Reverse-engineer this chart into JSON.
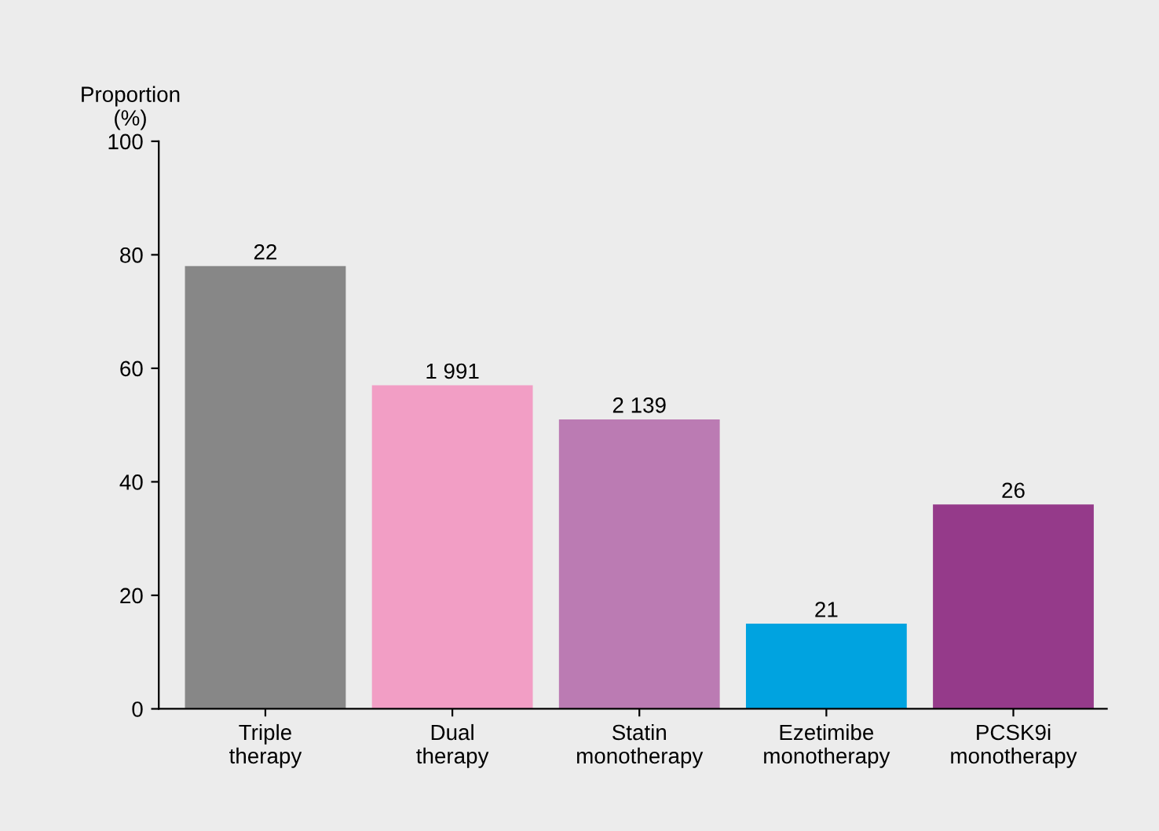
{
  "chart_data": {
    "type": "bar",
    "ylabel": "Proportion\n(%)",
    "categories": [
      "Triple\ntherapy",
      "Dual\ntherapy",
      "Statin\nmonotherapy",
      "Ezetimibe\nmonotherapy",
      "PCSK9i\nmonotherapy"
    ],
    "values": [
      78,
      57,
      51,
      15,
      36
    ],
    "colors": [
      "#878787",
      "#f29ec5",
      "#bb7bb3",
      "#00a3e0",
      "#953a8a"
    ],
    "annotations": [
      {
        "text": "22",
        "x": "Triple\ntherapy",
        "y": 78
      },
      {
        "text": "1 991",
        "x": "Dual\ntherapy",
        "y": 57
      },
      {
        "text": "2 139",
        "x": "Statin\nmonotherapy",
        "y": 51
      },
      {
        "text": "21",
        "x": "Ezetimibe\nmonotherapy",
        "y": 15
      },
      {
        "text": "26",
        "x": "PCSK9i\nmonotherapy",
        "y": 36
      }
    ],
    "ylim": [
      0,
      100
    ],
    "yticks": [
      0,
      20,
      40,
      60,
      80,
      100
    ],
    "grid": false,
    "legend": false
  }
}
